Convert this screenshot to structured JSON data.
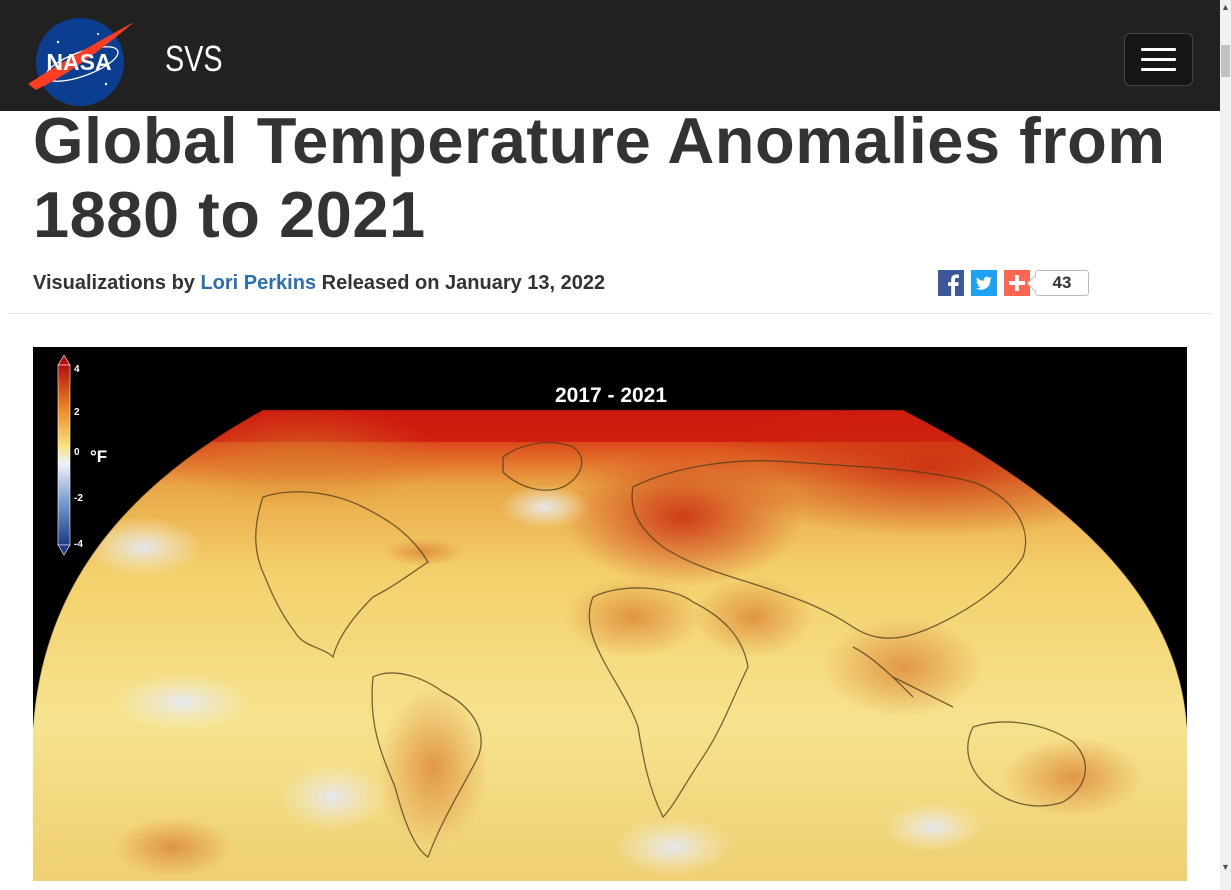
{
  "header": {
    "brand": "SVS",
    "logo_text": "NASA",
    "menu_icon": "hamburger-icon"
  },
  "article": {
    "title": "Global Temperature Anomalies from 1880 to 2021",
    "byline_prefix": "Visualizations by",
    "author": "Lori Perkins",
    "released": "Released on January 13, 2022"
  },
  "share": {
    "icons": [
      "facebook-icon",
      "twitter-icon",
      "addthis-icon"
    ],
    "count": "43"
  },
  "visualization": {
    "period_label": "2017 - 2021",
    "legend": {
      "unit": "°F",
      "ticks": [
        "4",
        "2",
        "0",
        "-2",
        "-4"
      ]
    },
    "colors": {
      "warm_max": "#c8120e",
      "warm": "#e07a2a",
      "neutral": "#f6e58f",
      "cool": "#dfe6f3",
      "cold": "#1c3a8a"
    }
  }
}
